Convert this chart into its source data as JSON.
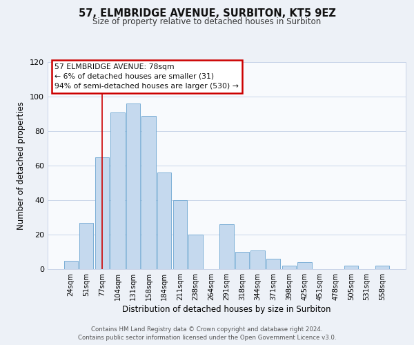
{
  "title": "57, ELMBRIDGE AVENUE, SURBITON, KT5 9EZ",
  "subtitle": "Size of property relative to detached houses in Surbiton",
  "xlabel": "Distribution of detached houses by size in Surbiton",
  "ylabel": "Number of detached properties",
  "bar_labels": [
    "24sqm",
    "51sqm",
    "77sqm",
    "104sqm",
    "131sqm",
    "158sqm",
    "184sqm",
    "211sqm",
    "238sqm",
    "264sqm",
    "291sqm",
    "318sqm",
    "344sqm",
    "371sqm",
    "398sqm",
    "425sqm",
    "451sqm",
    "478sqm",
    "505sqm",
    "531sqm",
    "558sqm"
  ],
  "bar_values": [
    5,
    27,
    65,
    91,
    96,
    89,
    56,
    40,
    20,
    0,
    26,
    10,
    11,
    6,
    2,
    4,
    0,
    0,
    2,
    0,
    2
  ],
  "bar_color": "#c5d9ee",
  "bar_edge_color": "#7aaed6",
  "ylim": [
    0,
    120
  ],
  "yticks": [
    0,
    20,
    40,
    60,
    80,
    100,
    120
  ],
  "vline_x": 2,
  "vline_color": "#cc0000",
  "annotation_title": "57 ELMBRIDGE AVENUE: 78sqm",
  "annotation_line1": "← 6% of detached houses are smaller (31)",
  "annotation_line2": "94% of semi-detached houses are larger (530) →",
  "annotation_box_color": "#ffffff",
  "annotation_box_edge_color": "#cc0000",
  "footer_line1": "Contains HM Land Registry data © Crown copyright and database right 2024.",
  "footer_line2": "Contains public sector information licensed under the Open Government Licence v3.0.",
  "background_color": "#edf1f7",
  "plot_background_color": "#f8fafd",
  "grid_color": "#c8d4e8"
}
